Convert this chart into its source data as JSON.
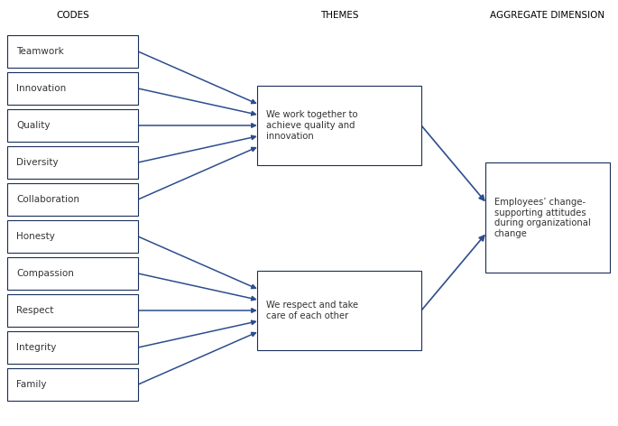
{
  "codes": [
    "Teamwork",
    "Innovation",
    "Quality",
    "Diversity",
    "Collaboration",
    "Honesty",
    "Compassion",
    "Respect",
    "Integrity",
    "Family"
  ],
  "theme1_text": "We work together to\nachieve quality and\ninnovation",
  "theme2_text": "We respect and take\ncare of each other",
  "aggregate_text": "Employees’ change-\nsupporting attitudes\nduring organizational\nchange",
  "header_codes": "CODES",
  "header_themes": "THEMES",
  "header_aggregate": "AGGREGATE DIMENSION",
  "box_facecolor": "#ffffff",
  "box_edgecolor": "#1a2e5a",
  "arrow_color": "#2d4d8e",
  "text_color": "#333333",
  "header_color": "#000000",
  "fig_width": 6.85,
  "fig_height": 4.72,
  "dpi": 100
}
